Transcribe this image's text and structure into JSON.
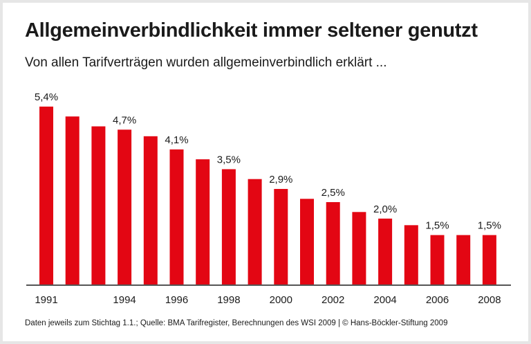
{
  "chart_data": {
    "type": "bar",
    "title": "Allgemeinverbindlichkeit immer seltener genutzt",
    "subtitle": "Von allen Tarifverträgen wurden allgemeinverbindlich erklärt ...",
    "footer": "Daten jeweils zum Stichtag 1.1.; Quelle: BMA Tarifregister, Berechnungen des WSI 2009 | © Hans-Böckler-Stiftung 2009",
    "categories": [
      1991,
      1992,
      1993,
      1994,
      1995,
      1996,
      1997,
      1998,
      1999,
      2000,
      2001,
      2002,
      2003,
      2004,
      2005,
      2006,
      2007,
      2008
    ],
    "values": [
      5.4,
      5.1,
      4.8,
      4.7,
      4.5,
      4.1,
      3.8,
      3.5,
      3.2,
      2.9,
      2.6,
      2.5,
      2.2,
      2.0,
      1.8,
      1.5,
      1.5,
      1.5
    ],
    "data_labels": {
      "1991": "5,4%",
      "1994": "4,7%",
      "1996": "4,1%",
      "1998": "3,5%",
      "2000": "2,9%",
      "2002": "2,5%",
      "2004": "2,0%",
      "2006": "1,5%",
      "2008": "1,5%"
    },
    "x_tick_labels": [
      "1991",
      "1994",
      "1996",
      "1998",
      "2000",
      "2002",
      "2004",
      "2006",
      "2008"
    ],
    "unit": "%",
    "ylim": [
      0,
      5.4
    ],
    "bar_color": "#e30613",
    "grid": false,
    "legend": "none"
  }
}
